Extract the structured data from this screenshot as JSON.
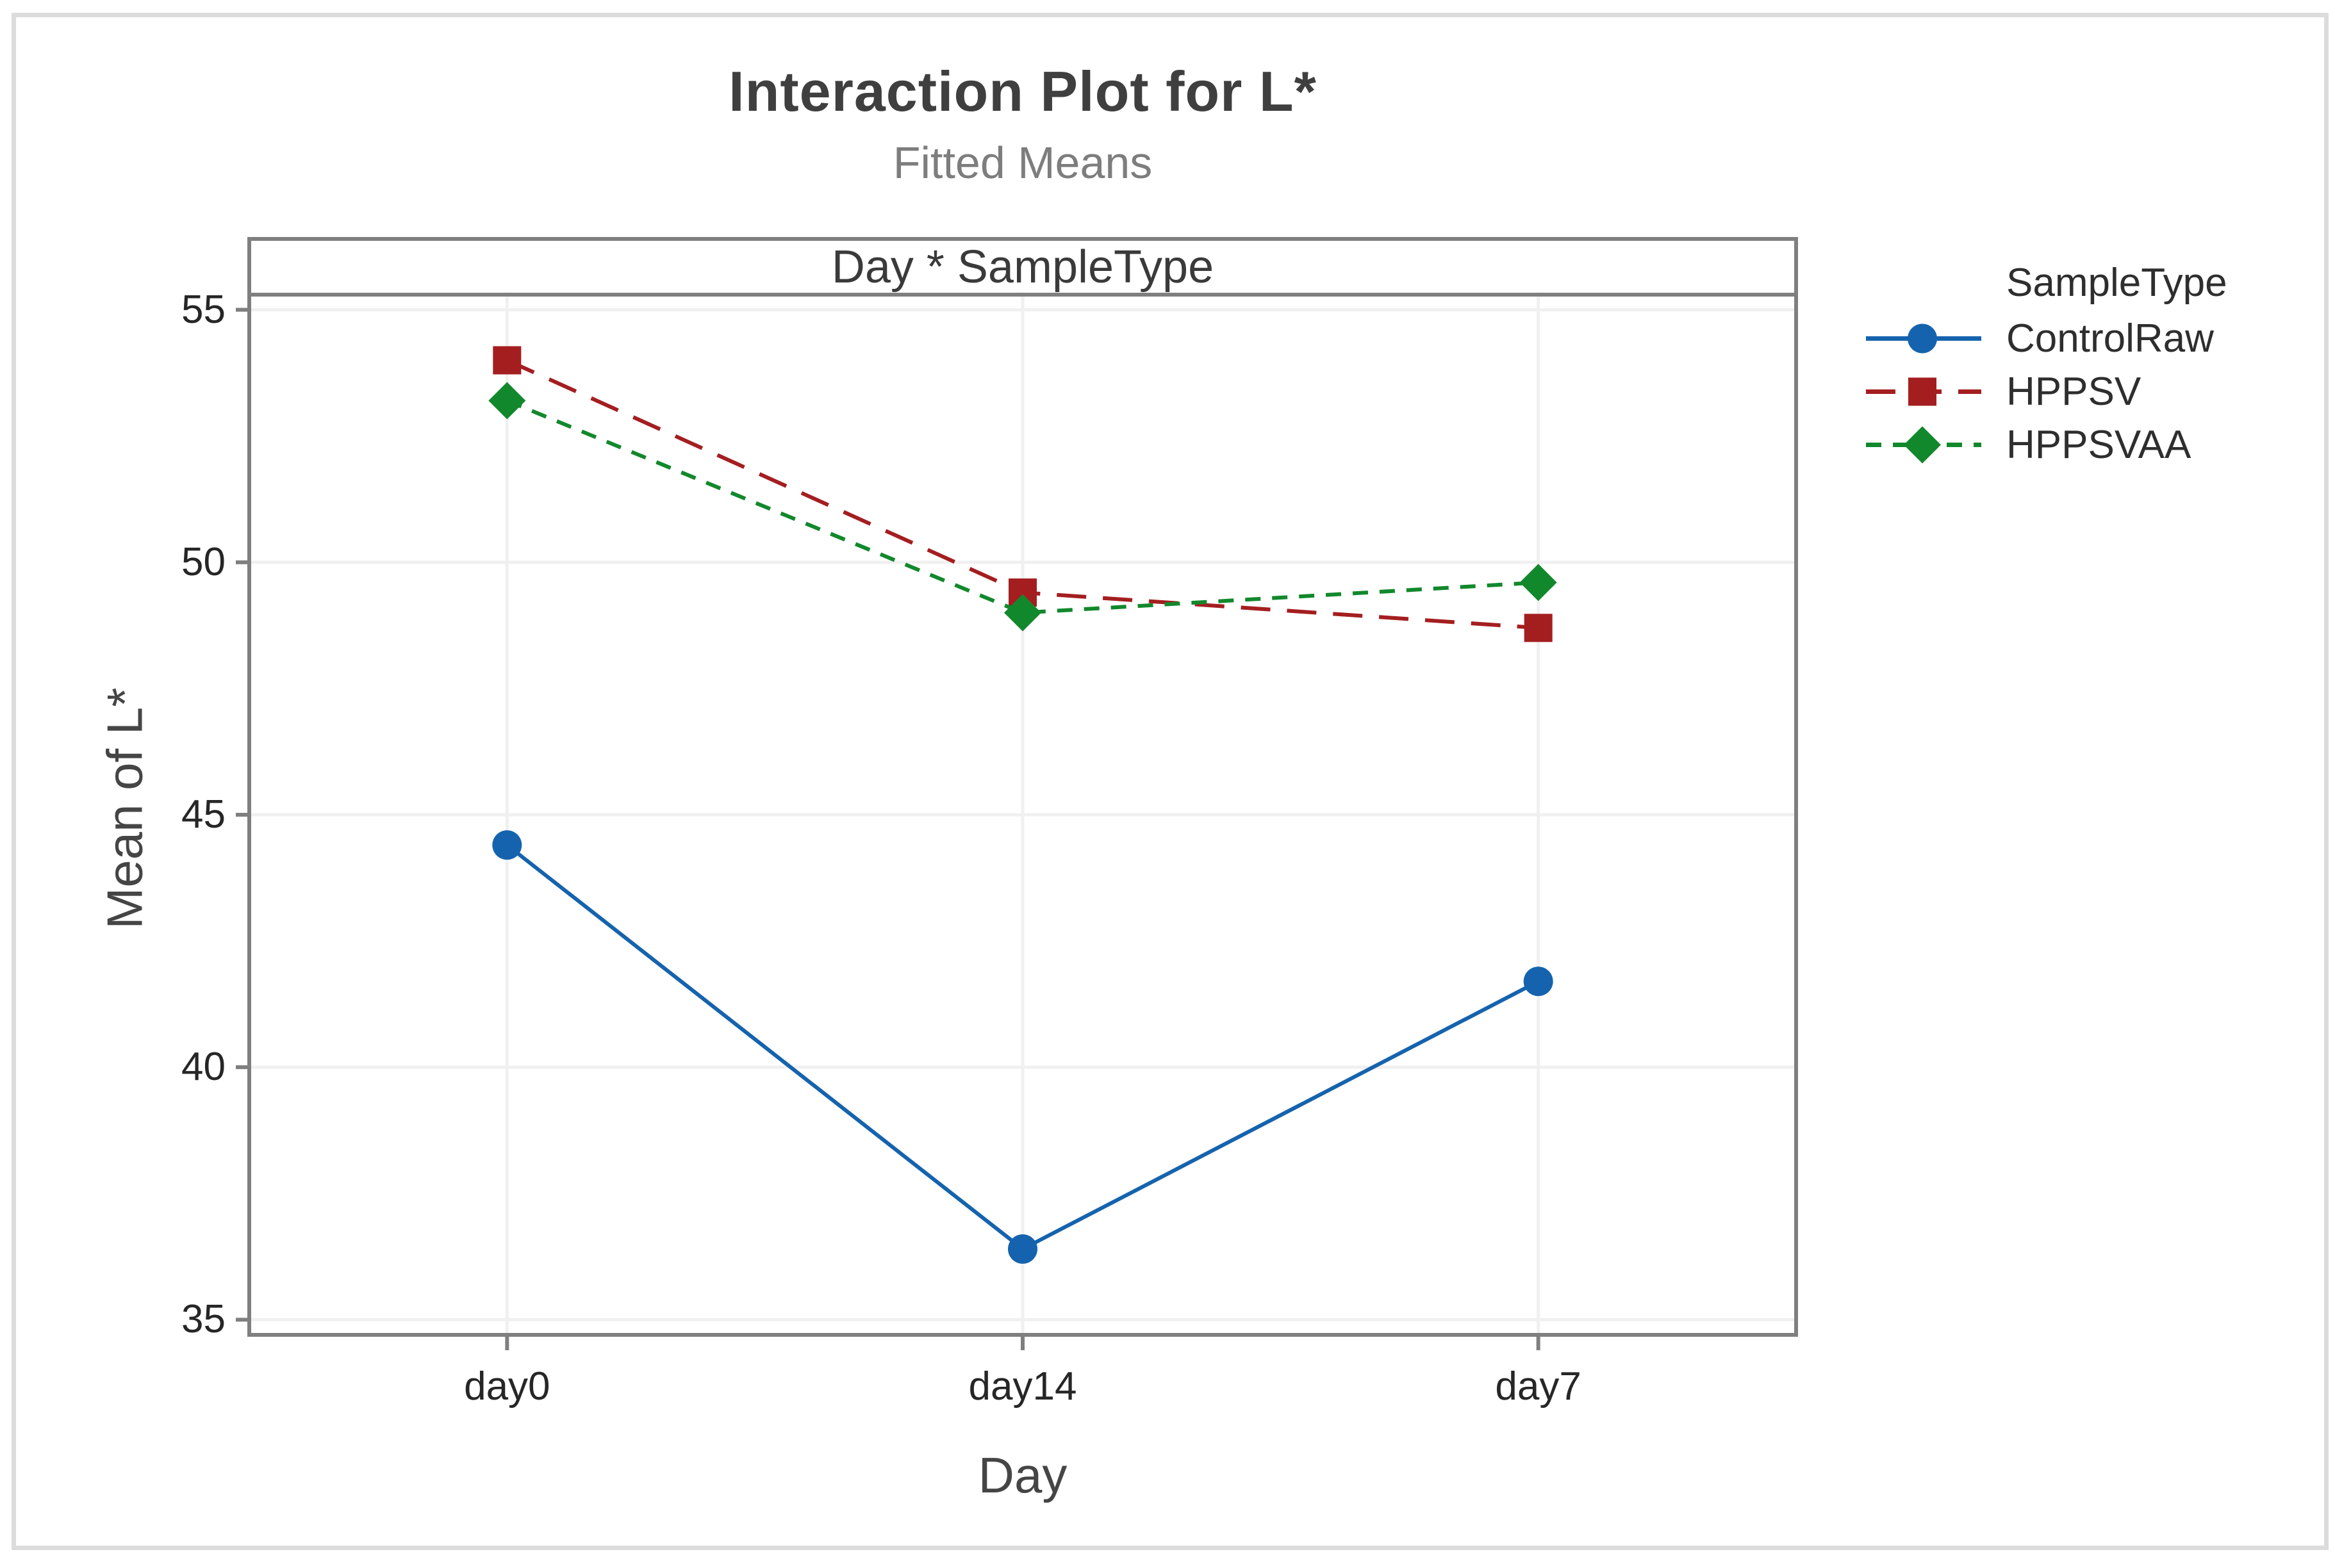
{
  "colors": {
    "axis": "#7f7f7f",
    "grid": "#f0f0f0",
    "frame": "#dcdcdc",
    "title_text": "#3f3f3f",
    "subtitle_text": "#7d7d7d",
    "tick_text": "#262626",
    "label_text": "#454545"
  },
  "chart_data": {
    "type": "line",
    "title": "Interaction Plot for L*",
    "subtitle": "Fitted Means",
    "panel_label": "Day * SampleType",
    "xlabel": "Day",
    "ylabel": "Mean of L*",
    "categories": [
      "day0",
      "day14",
      "day7"
    ],
    "yticks": [
      35,
      40,
      45,
      50,
      55
    ],
    "ylim": [
      34.7,
      55.3
    ],
    "grid": true,
    "legend_title": "SampleType",
    "legend_position": "right",
    "series": [
      {
        "name": "ControlRaw",
        "values": [
          44.4,
          36.4,
          41.7
        ],
        "color": "#1563AE",
        "marker": "circle",
        "line": "solid"
      },
      {
        "name": "HPPSV",
        "values": [
          54.0,
          49.4,
          48.7
        ],
        "color": "#A41E20",
        "marker": "square",
        "line": "dash"
      },
      {
        "name": "HPPSVAA",
        "values": [
          53.2,
          49.0,
          49.6
        ],
        "color": "#12882C",
        "marker": "diamond",
        "line": "shortdash"
      }
    ]
  }
}
